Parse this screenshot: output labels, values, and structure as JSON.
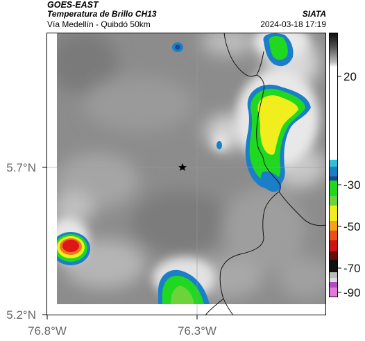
{
  "header": {
    "satellite": "GOES-EAST",
    "product": "Temperatura de Brillo CH13",
    "route": "Vía Medellín - Quibdó 50km",
    "org": "SIATA",
    "timestamp": "2024-03-18 17:19"
  },
  "map": {
    "lat_ticks": [
      "5.7°N",
      "5.2°N"
    ],
    "lon_ticks": [
      "76.8°W",
      "76.3°W"
    ],
    "marker": "star",
    "colors": {
      "frame": "#000000",
      "gridline": "#9a9a9a",
      "border_line": "#111111",
      "cold_yellow": "#f0ee1c",
      "cold_green": "#20d820",
      "cold_blue": "#1b7ec9",
      "cold_red": "#e01515"
    }
  },
  "colorbar": {
    "labels": [
      "20",
      "-30",
      "-50",
      "-70",
      "-90"
    ],
    "values": [
      20,
      -30,
      -50,
      -70,
      -90
    ]
  }
}
